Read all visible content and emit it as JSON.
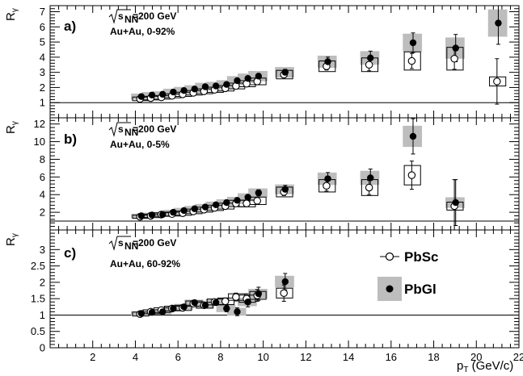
{
  "chart_data": {
    "type": "scatter",
    "xlabel": "p",
    "xlabel_sub": "T",
    "xlabel_unit": " (GeV/c)",
    "ylabel": "R",
    "ylabel_sub": "γ",
    "xlim": [
      0,
      22
    ],
    "xticks": [
      2,
      4,
      6,
      8,
      10,
      12,
      14,
      16,
      18,
      20,
      22
    ],
    "legend": {
      "placement": "inside-right of panel c",
      "entries": [
        {
          "name": "PbSc",
          "marker": "open-circle",
          "sys": "open-box"
        },
        {
          "name": "PbGl",
          "marker": "filled-circle",
          "sys": "gray-band"
        }
      ]
    },
    "panels": [
      {
        "id": "a",
        "label": "a)",
        "energy_text": "=200 GeV",
        "sqrt_label": "s",
        "sqrt_sub": "NN",
        "system_text": "Au+Au, 0-92%",
        "ylim": [
          0,
          7.4
        ],
        "yticks": [
          1,
          2,
          3,
          4,
          5,
          6,
          7
        ],
        "reference_line": 1,
        "series": [
          {
            "name": "PbSc",
            "x": [
              4.25,
              4.75,
              5.25,
              5.75,
              6.25,
              6.75,
              7.25,
              7.75,
              8.25,
              8.75,
              9.25,
              9.75,
              11,
              13,
              15,
              17,
              19,
              21
            ],
            "y": [
              1.25,
              1.3,
              1.35,
              1.45,
              1.55,
              1.65,
              1.75,
              1.85,
              1.95,
              2.1,
              2.25,
              2.4,
              2.85,
              3.4,
              3.5,
              3.75,
              3.9,
              2.4
            ],
            "stat": [
              0.05,
              0.05,
              0.05,
              0.05,
              0.06,
              0.06,
              0.07,
              0.07,
              0.08,
              0.09,
              0.1,
              0.12,
              0.18,
              0.25,
              0.4,
              0.5,
              0.7,
              1.5
            ],
            "sys": [
              0.12,
              0.12,
              0.12,
              0.13,
              0.14,
              0.15,
              0.16,
              0.17,
              0.18,
              0.19,
              0.2,
              0.22,
              0.28,
              0.35,
              0.45,
              0.6,
              0.75,
              0.3
            ]
          },
          {
            "name": "PbGl",
            "x": [
              4.25,
              4.75,
              5.25,
              5.75,
              6.25,
              6.75,
              7.25,
              7.75,
              8.25,
              8.75,
              9.25,
              9.75,
              11,
              13,
              15,
              17,
              19,
              21
            ],
            "y": [
              1.4,
              1.5,
              1.55,
              1.7,
              1.8,
              1.9,
              2.05,
              2.1,
              2.2,
              2.45,
              2.6,
              2.75,
              3.0,
              3.7,
              3.95,
              4.95,
              4.6,
              6.25
            ],
            "stat": [
              0.05,
              0.05,
              0.06,
              0.06,
              0.07,
              0.07,
              0.08,
              0.09,
              0.1,
              0.11,
              0.13,
              0.15,
              0.2,
              0.3,
              0.45,
              0.65,
              0.9,
              1.4
            ],
            "sys": [
              0.2,
              0.2,
              0.2,
              0.22,
              0.24,
              0.25,
              0.26,
              0.27,
              0.28,
              0.3,
              0.32,
              0.34,
              0.35,
              0.4,
              0.45,
              0.6,
              0.7,
              0.9
            ]
          }
        ]
      },
      {
        "id": "b",
        "label": "b)",
        "energy_text": "=200 GeV",
        "sqrt_label": "s",
        "sqrt_sub": "NN",
        "system_text": "Au+Au, 0-5%",
        "ylim": [
          0,
          12.7
        ],
        "yticks": [
          2,
          4,
          6,
          8,
          10,
          12
        ],
        "reference_line": 1,
        "series": [
          {
            "name": "PbSc",
            "x": [
              4.25,
              4.75,
              5.25,
              5.75,
              6.25,
              6.75,
              7.25,
              7.75,
              8.25,
              8.75,
              9.25,
              9.75,
              11,
              13,
              15,
              17,
              19
            ],
            "y": [
              1.5,
              1.6,
              1.75,
              1.8,
              1.9,
              2.1,
              2.3,
              2.5,
              2.7,
              3.0,
              3.0,
              3.3,
              4.3,
              5.0,
              4.8,
              6.2,
              2.7
            ],
            "stat": [
              0.1,
              0.1,
              0.1,
              0.1,
              0.12,
              0.12,
              0.14,
              0.15,
              0.18,
              0.2,
              0.25,
              0.3,
              0.4,
              0.6,
              0.8,
              1.6,
              3.0
            ],
            "sys": [
              0.18,
              0.2,
              0.2,
              0.22,
              0.24,
              0.26,
              0.28,
              0.3,
              0.33,
              0.36,
              0.38,
              0.42,
              0.55,
              0.7,
              0.9,
              1.1,
              0.45
            ]
          },
          {
            "name": "PbGl",
            "x": [
              4.25,
              4.75,
              5.25,
              5.75,
              6.25,
              6.75,
              7.25,
              7.75,
              8.25,
              8.75,
              9.25,
              9.75,
              11,
              13,
              15,
              17,
              19
            ],
            "y": [
              1.6,
              1.7,
              1.75,
              2.0,
              2.2,
              2.4,
              2.6,
              2.85,
              3.1,
              3.35,
              3.7,
              4.2,
              4.6,
              5.8,
              5.9,
              10.6,
              3.1
            ],
            "stat": [
              0.1,
              0.1,
              0.1,
              0.12,
              0.13,
              0.14,
              0.16,
              0.18,
              0.2,
              0.24,
              0.28,
              0.35,
              0.45,
              0.7,
              1.0,
              2.0,
              2.6
            ],
            "sys": [
              0.25,
              0.25,
              0.26,
              0.28,
              0.3,
              0.32,
              0.34,
              0.36,
              0.38,
              0.4,
              0.45,
              0.5,
              0.55,
              0.7,
              0.8,
              1.2,
              0.6
            ]
          }
        ]
      },
      {
        "id": "c",
        "label": "c)",
        "energy_text": "=200 GeV",
        "sqrt_label": "s",
        "sqrt_sub": "NN",
        "system_text": "Au+Au, 60-92%",
        "ylim": [
          0,
          3.6
        ],
        "yticks": [
          0,
          0.5,
          1,
          1.5,
          2,
          2.5,
          3
        ],
        "reference_line": 1,
        "series": [
          {
            "name": "PbSc",
            "x": [
              4.25,
              4.75,
              5.25,
              5.75,
              6.25,
              6.75,
              7.25,
              7.75,
              8.25,
              8.75,
              9.25,
              9.75,
              11
            ],
            "y": [
              1.03,
              1.1,
              1.15,
              1.2,
              1.22,
              1.35,
              1.3,
              1.4,
              1.42,
              1.55,
              1.5,
              1.6,
              1.67
            ],
            "stat": [
              0.03,
              0.03,
              0.04,
              0.04,
              0.05,
              0.06,
              0.07,
              0.08,
              0.1,
              0.12,
              0.15,
              0.18,
              0.25
            ],
            "sys": [
              0.06,
              0.06,
              0.07,
              0.07,
              0.08,
              0.08,
              0.09,
              0.09,
              0.1,
              0.1,
              0.11,
              0.12,
              0.15
            ]
          },
          {
            "name": "PbGl",
            "x": [
              4.25,
              4.75,
              5.25,
              5.75,
              6.25,
              6.75,
              7.25,
              7.75,
              8.25,
              8.75,
              9.25,
              9.75,
              11
            ],
            "y": [
              1.05,
              1.08,
              1.1,
              1.2,
              1.25,
              1.38,
              1.3,
              1.38,
              1.2,
              1.1,
              1.4,
              1.65,
              2.02
            ],
            "stat": [
              0.03,
              0.04,
              0.04,
              0.05,
              0.05,
              0.06,
              0.07,
              0.08,
              0.1,
              0.12,
              0.15,
              0.2,
              0.25
            ],
            "sys": [
              0.07,
              0.07,
              0.08,
              0.08,
              0.09,
              0.09,
              0.1,
              0.1,
              0.11,
              0.12,
              0.13,
              0.15,
              0.18
            ]
          }
        ]
      }
    ]
  }
}
